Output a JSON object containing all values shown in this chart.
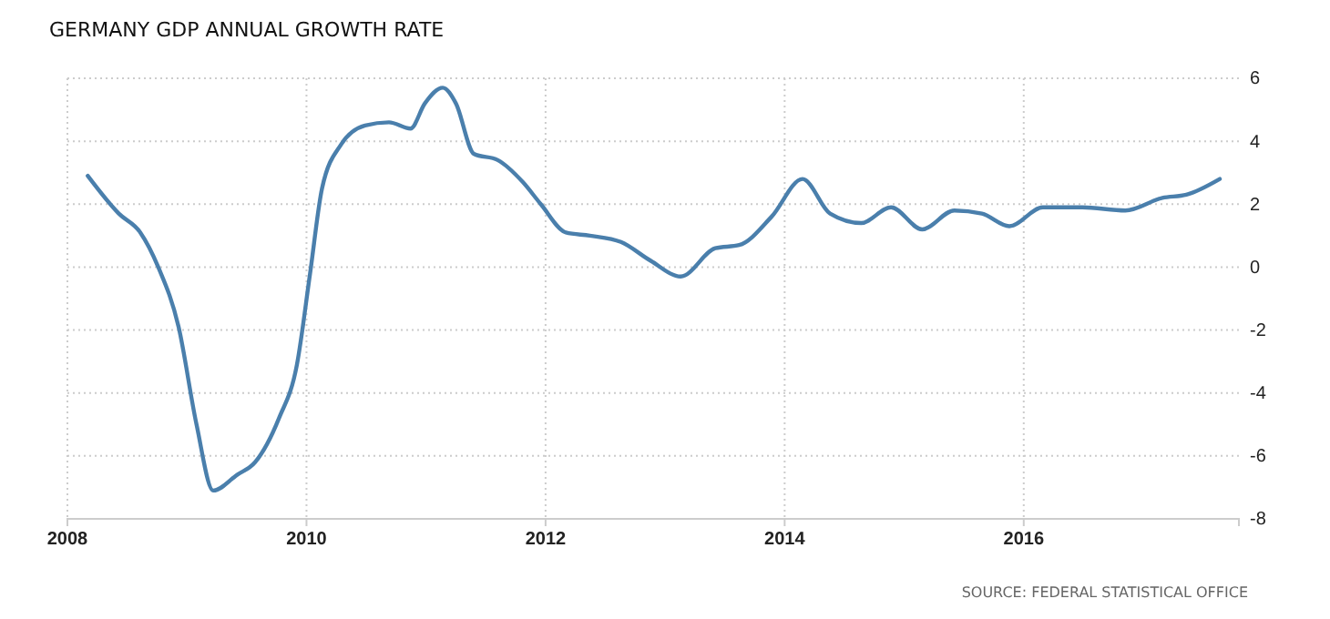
{
  "chart_data": {
    "type": "line",
    "title": "GERMANY GDP ANNUAL GROWTH RATE",
    "annotations": [
      "SOURCE: FEDERAL STATISTICAL OFFICE"
    ],
    "x": [
      2008.17,
      2008.43,
      2008.61,
      2008.76,
      2008.93,
      2009.08,
      2009.22,
      2009.42,
      2009.57,
      2009.77,
      2009.92,
      2010.03,
      2010.13,
      2010.29,
      2010.49,
      2010.69,
      2010.87,
      2010.99,
      2011.14,
      2011.25,
      2011.4,
      2011.6,
      2011.81,
      2011.96,
      2012.17,
      2012.37,
      2012.63,
      2012.88,
      2013.13,
      2013.42,
      2013.62,
      2013.89,
      2014.15,
      2014.38,
      2014.64,
      2014.89,
      2015.15,
      2015.42,
      2015.65,
      2015.88,
      2016.16,
      2016.49,
      2016.85,
      2017.16,
      2017.36,
      2017.64
    ],
    "series": [
      {
        "color": "#4a7fac",
        "values": [
          2.9,
          1.7,
          1.1,
          0.0,
          -1.9,
          -5.0,
          -7.1,
          -6.6,
          -6.2,
          -4.8,
          -3.1,
          -0.2,
          2.5,
          3.9,
          4.5,
          4.6,
          4.4,
          5.2,
          5.7,
          5.2,
          3.6,
          3.4,
          2.7,
          2.0,
          1.1,
          1.0,
          0.8,
          0.2,
          -0.3,
          0.6,
          0.7,
          1.6,
          2.8,
          1.7,
          1.4,
          1.9,
          1.2,
          1.8,
          1.7,
          1.3,
          1.9,
          1.9,
          1.8,
          2.2,
          2.3,
          2.8
        ]
      }
    ],
    "xlim": [
      2008,
      2017.8
    ],
    "xticks": [
      2008,
      2010,
      2012,
      2014,
      2016
    ],
    "ylim": [
      -8,
      6
    ],
    "yticks": [
      -8,
      -6,
      -4,
      -2,
      0,
      2,
      4,
      6
    ],
    "grid": true,
    "line_style": "solid",
    "marker": "none"
  }
}
